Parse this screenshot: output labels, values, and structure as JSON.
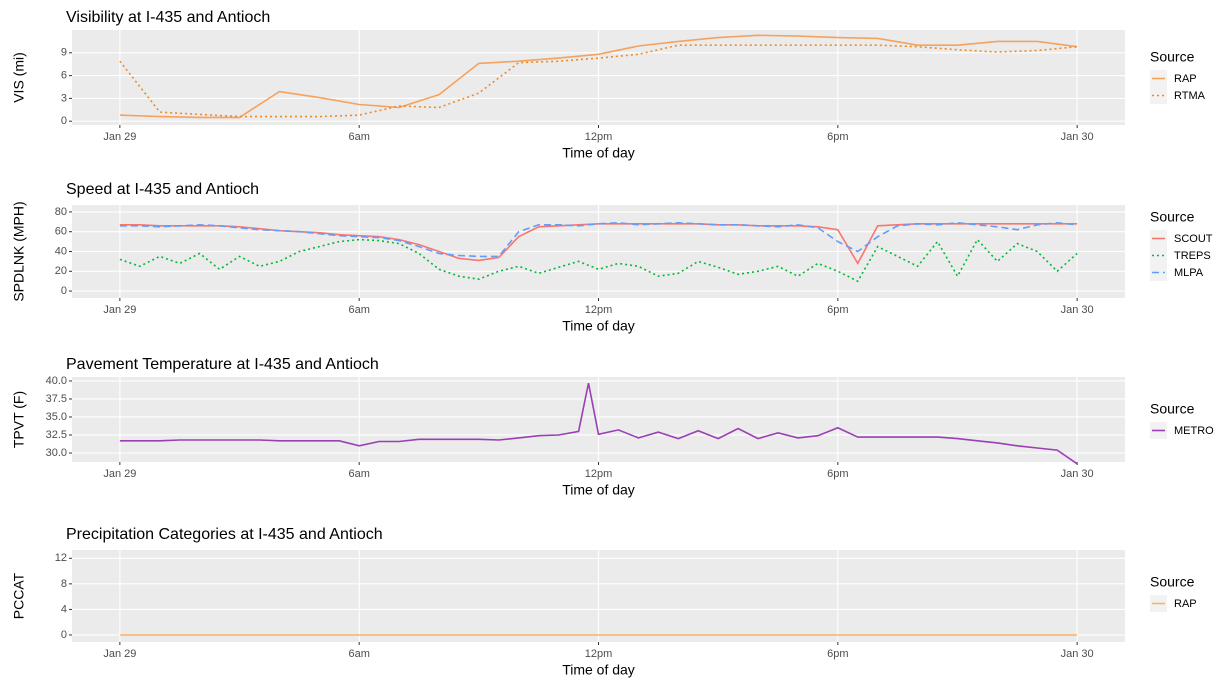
{
  "chart_data": [
    {
      "type": "line",
      "title": "Visibility at I-435 and Antioch",
      "xlabel": "Time of day",
      "ylabel": "VIS (mi)",
      "legend_title": "Source",
      "x": [
        0,
        1,
        2,
        3,
        4,
        5,
        6,
        7,
        8,
        9,
        10,
        11,
        12,
        13,
        14,
        15,
        16,
        17,
        18,
        19,
        20,
        21,
        22,
        23,
        24
      ],
      "xlim": [
        -1.2,
        25.2
      ],
      "xticks": [
        {
          "value": 0,
          "label": "Jan 29"
        },
        {
          "value": 6,
          "label": "6am"
        },
        {
          "value": 12,
          "label": "12pm"
        },
        {
          "value": 18,
          "label": "6pm"
        },
        {
          "value": 24,
          "label": "Jan 30"
        }
      ],
      "ylim": [
        -0.5,
        12
      ],
      "yticks": [
        0,
        3,
        6,
        9
      ],
      "grid": true,
      "series": [
        {
          "name": "RAP",
          "color": "#f5a25d",
          "linetype": "solid",
          "values": [
            0.8,
            0.6,
            0.5,
            0.5,
            3.9,
            3.1,
            2.2,
            1.8,
            3.5,
            7.6,
            7.9,
            8.3,
            8.8,
            9.9,
            10.5,
            11,
            11.3,
            11.2,
            11,
            10.9,
            10,
            10,
            10.5,
            10.5,
            9.8
          ]
        },
        {
          "name": "RTMA",
          "color": "#f08a24",
          "linetype": "dotted",
          "values": [
            7.9,
            1.2,
            0.9,
            0.6,
            0.6,
            0.6,
            0.8,
            2.0,
            1.8,
            3.7,
            7.7,
            7.9,
            8.3,
            8.8,
            10,
            10,
            10,
            10,
            10,
            10,
            9.8,
            9.4,
            9.1,
            9.3,
            9.8
          ]
        }
      ]
    },
    {
      "type": "line",
      "title": "Speed at I-435 and Antioch",
      "xlabel": "Time of day",
      "ylabel": "SPDLNK (MPH)",
      "legend_title": "Source",
      "x": [
        0,
        0.5,
        1,
        1.5,
        2,
        2.5,
        3,
        3.5,
        4,
        4.5,
        5,
        5.5,
        6,
        6.5,
        7,
        7.5,
        8,
        8.5,
        9,
        9.5,
        10,
        10.5,
        11,
        11.5,
        12,
        12.5,
        13,
        13.5,
        14,
        14.5,
        15,
        15.5,
        16,
        16.5,
        17,
        17.5,
        18,
        18.5,
        19,
        19.5,
        20,
        20.5,
        21,
        21.5,
        22,
        22.5,
        23,
        23.5,
        24
      ],
      "xlim": [
        -1.2,
        25.2
      ],
      "xticks": [
        {
          "value": 0,
          "label": "Jan 29"
        },
        {
          "value": 6,
          "label": "6am"
        },
        {
          "value": 12,
          "label": "12pm"
        },
        {
          "value": 18,
          "label": "6pm"
        },
        {
          "value": 24,
          "label": "Jan 30"
        }
      ],
      "ylim": [
        -7,
        87
      ],
      "yticks": [
        0,
        20,
        40,
        60,
        80
      ],
      "grid": true,
      "series": [
        {
          "name": "SCOUT",
          "color": "#f8766d",
          "linetype": "solid",
          "values": [
            67,
            67,
            66,
            66,
            66,
            66,
            65,
            63,
            61,
            60,
            59,
            57,
            56,
            55,
            52,
            47,
            40,
            33,
            31,
            34,
            55,
            65,
            66,
            67,
            68,
            68,
            68,
            68,
            68,
            68,
            67,
            67,
            66,
            66,
            66,
            65,
            62,
            28,
            66,
            67,
            68,
            68,
            68,
            68,
            68,
            68,
            68,
            68,
            68
          ]
        },
        {
          "name": "TREPS",
          "color": "#00ba38",
          "linetype": "dotted",
          "values": [
            32,
            25,
            35,
            28,
            38,
            22,
            35,
            25,
            30,
            40,
            45,
            50,
            52,
            51,
            48,
            38,
            22,
            15,
            12,
            20,
            25,
            18,
            24,
            30,
            22,
            28,
            25,
            15,
            18,
            30,
            24,
            17,
            20,
            25,
            15,
            28,
            20,
            10,
            45,
            35,
            25,
            50,
            15,
            52,
            30,
            48,
            40,
            20,
            38
          ]
        },
        {
          "name": "MLPA",
          "color": "#619cff",
          "linetype": "dashed",
          "values": [
            66,
            66,
            65,
            66,
            67,
            66,
            64,
            62,
            61,
            60,
            58,
            56,
            55,
            54,
            51,
            45,
            38,
            36,
            35,
            35,
            60,
            67,
            67,
            66,
            68,
            69,
            67,
            68,
            69,
            68,
            67,
            67,
            66,
            65,
            67,
            64,
            50,
            40,
            55,
            66,
            68,
            67,
            69,
            67,
            65,
            62,
            67,
            69,
            67
          ]
        }
      ]
    },
    {
      "type": "line",
      "title": "Pavement Temperature at I-435 and Antioch",
      "xlabel": "Time of day",
      "ylabel": "TPVT (F)",
      "legend_title": "Source",
      "x": [
        0,
        0.5,
        1,
        1.5,
        2,
        2.5,
        3,
        3.5,
        4,
        4.5,
        5,
        5.5,
        6,
        6.5,
        7,
        7.5,
        8,
        8.5,
        9,
        9.5,
        10,
        10.5,
        11,
        11.5,
        11.75,
        12,
        12.5,
        13,
        13.5,
        14,
        14.5,
        15,
        15.5,
        16,
        16.5,
        17,
        17.5,
        18,
        18.5,
        19,
        19.5,
        20,
        20.5,
        21,
        21.5,
        22,
        22.5,
        23,
        23.5,
        24
      ],
      "xlim": [
        -1.2,
        25.2
      ],
      "xticks": [
        {
          "value": 0,
          "label": "Jan 29"
        },
        {
          "value": 6,
          "label": "6am"
        },
        {
          "value": 12,
          "label": "12pm"
        },
        {
          "value": 18,
          "label": "6pm"
        },
        {
          "value": 24,
          "label": "Jan 30"
        }
      ],
      "ylim": [
        28.75,
        40.55
      ],
      "yticks": [
        {
          "value": 30,
          "label": "30.0"
        },
        32.5,
        {
          "value": 35,
          "label": "35.0"
        },
        37.5,
        {
          "value": 40,
          "label": "40.0"
        }
      ],
      "grid": true,
      "series": [
        {
          "name": "METRO",
          "color": "#9b3fb5",
          "linetype": "solid",
          "values": [
            31.7,
            31.7,
            31.7,
            31.8,
            31.8,
            31.8,
            31.8,
            31.8,
            31.7,
            31.7,
            31.7,
            31.7,
            31.0,
            31.6,
            31.6,
            31.9,
            31.9,
            31.9,
            31.9,
            31.8,
            32.1,
            32.4,
            32.5,
            33.0,
            39.7,
            32.6,
            33.2,
            32.1,
            32.9,
            32.0,
            33.1,
            32.0,
            33.4,
            32.0,
            32.8,
            32.1,
            32.4,
            33.5,
            32.2,
            32.2,
            32.2,
            32.2,
            32.2,
            32.0,
            31.7,
            31.4,
            31.0,
            30.7,
            30.4,
            28.5
          ]
        }
      ]
    },
    {
      "type": "line",
      "title": "Precipitation Categories at I-435 and Antioch",
      "xlabel": "Time of day",
      "ylabel": "PCCAT",
      "legend_title": "Source",
      "x": [
        0,
        1,
        2,
        3,
        4,
        5,
        6,
        7,
        8,
        9,
        10,
        11,
        12,
        13,
        14,
        15,
        16,
        17,
        18,
        19,
        20,
        21,
        22,
        23,
        24
      ],
      "xlim": [
        -1.2,
        25.2
      ],
      "xticks": [
        {
          "value": 0,
          "label": "Jan 29"
        },
        {
          "value": 6,
          "label": "6am"
        },
        {
          "value": 12,
          "label": "12pm"
        },
        {
          "value": 18,
          "label": "6pm"
        },
        {
          "value": 24,
          "label": "Jan 30"
        }
      ],
      "ylim": [
        -1.1,
        13.3
      ],
      "yticks": [
        0,
        4,
        8,
        12
      ],
      "grid": true,
      "series": [
        {
          "name": "RAP",
          "color": "#f8b26a",
          "linetype": "solid",
          "values": [
            0,
            0,
            0,
            0,
            0,
            0,
            0,
            0,
            0,
            0,
            0,
            0,
            0,
            0,
            0,
            0,
            0,
            0,
            0,
            0,
            0,
            0,
            0,
            0,
            0
          ]
        }
      ]
    }
  ]
}
